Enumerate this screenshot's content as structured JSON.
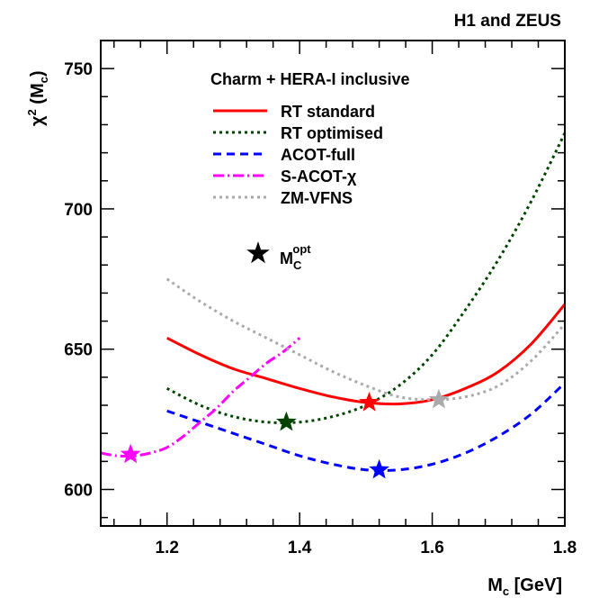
{
  "header": {
    "title": "H1 and ZEUS"
  },
  "chart_data": {
    "type": "line",
    "title": "",
    "xlabel_main": "M",
    "xlabel_sub": "c",
    "xlabel_rest": " [GeV]",
    "ylabel_main": "χ",
    "ylabel_sup": "2",
    "ylabel_mid": " (M",
    "ylabel_sub": "c",
    "ylabel_end": ")",
    "xlim": [
      1.1,
      1.8
    ],
    "ylim": [
      587,
      760
    ],
    "x_ticks": [
      "1.2",
      "1.4",
      "1.6",
      "1.8"
    ],
    "y_ticks": [
      "600",
      "650",
      "700",
      "750"
    ],
    "legend": {
      "heading": "Charm + HERA-I inclusive",
      "marker_label_main": "M",
      "marker_label_sub": "C",
      "marker_label_sup": "opt"
    },
    "series": [
      {
        "name": "RT standard",
        "color": "#ff0000",
        "dash": "solid",
        "x": [
          1.2,
          1.25,
          1.3,
          1.35,
          1.4,
          1.45,
          1.5,
          1.55,
          1.6,
          1.65,
          1.7,
          1.75,
          1.8
        ],
        "y": [
          654,
          648,
          643,
          639.5,
          636,
          633,
          631,
          630.5,
          632,
          636,
          642,
          652,
          666
        ],
        "optimum": {
          "x": 1.505,
          "y": 631
        }
      },
      {
        "name": "RT optimised",
        "color": "#004400",
        "dash": "dotted",
        "x": [
          1.2,
          1.25,
          1.3,
          1.35,
          1.4,
          1.45,
          1.5,
          1.55,
          1.6,
          1.65,
          1.7,
          1.75,
          1.8
        ],
        "y": [
          636,
          630,
          626,
          624,
          624,
          626,
          630,
          637,
          648,
          664,
          682,
          703,
          727
        ],
        "optimum": {
          "x": 1.38,
          "y": 624
        }
      },
      {
        "name": "ACOT-full",
        "color": "#0000ff",
        "dash": "dashed",
        "x": [
          1.2,
          1.25,
          1.3,
          1.35,
          1.4,
          1.45,
          1.5,
          1.55,
          1.6,
          1.65,
          1.7,
          1.75,
          1.8
        ],
        "y": [
          628,
          624,
          620,
          616,
          612,
          609,
          607,
          607,
          609,
          613,
          619,
          627,
          638
        ],
        "optimum": {
          "x": 1.52,
          "y": 607
        }
      },
      {
        "name": "S-ACOT-χ",
        "color": "#ff00ff",
        "dash": "dashdot",
        "x": [
          1.1,
          1.125,
          1.15,
          1.175,
          1.2,
          1.225,
          1.25,
          1.275,
          1.3,
          1.325,
          1.35,
          1.375,
          1.4
        ],
        "y": [
          613,
          612,
          612,
          613,
          615,
          619,
          624,
          629,
          635,
          640,
          645,
          649,
          654
        ],
        "optimum": {
          "x": 1.145,
          "y": 612.5
        }
      },
      {
        "name": "ZM-VFNS",
        "color": "#aaaaaa",
        "dash": "dotted",
        "x": [
          1.2,
          1.25,
          1.3,
          1.35,
          1.4,
          1.45,
          1.5,
          1.55,
          1.6,
          1.65,
          1.7,
          1.75,
          1.8
        ],
        "y": [
          675,
          667,
          660,
          654,
          648,
          642,
          637,
          633,
          632,
          633,
          637,
          646,
          659
        ],
        "optimum": {
          "x": 1.61,
          "y": 632
        }
      }
    ]
  }
}
